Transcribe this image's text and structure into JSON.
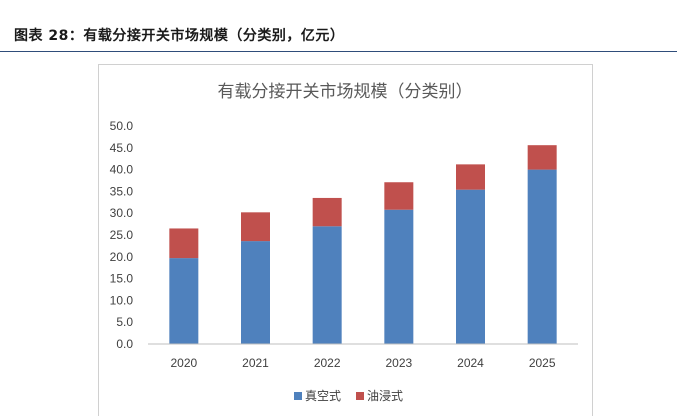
{
  "figure": {
    "caption": "图表 28：有载分接开关市场规模（分类别，亿元）"
  },
  "chart_data": {
    "type": "bar",
    "stacked": true,
    "title": "有载分接开关市场规模（分类别）",
    "categories": [
      "2020",
      "2021",
      "2022",
      "2023",
      "2024",
      "2025"
    ],
    "series": [
      {
        "name": "真空式",
        "color": "#4f81bd",
        "values": [
          19.7,
          23.6,
          27.0,
          30.8,
          35.4,
          40.0
        ]
      },
      {
        "name": "油浸式",
        "color": "#c0504d",
        "values": [
          6.8,
          6.6,
          6.5,
          6.3,
          5.8,
          5.6
        ]
      }
    ],
    "ylim": [
      0,
      50
    ],
    "yticks": [
      "0.0",
      "5.0",
      "10.0",
      "15.0",
      "20.0",
      "25.0",
      "30.0",
      "35.0",
      "40.0",
      "45.0",
      "50.0"
    ],
    "xlabel": "",
    "ylabel": "",
    "grid": false,
    "legend_position": "bottom"
  }
}
